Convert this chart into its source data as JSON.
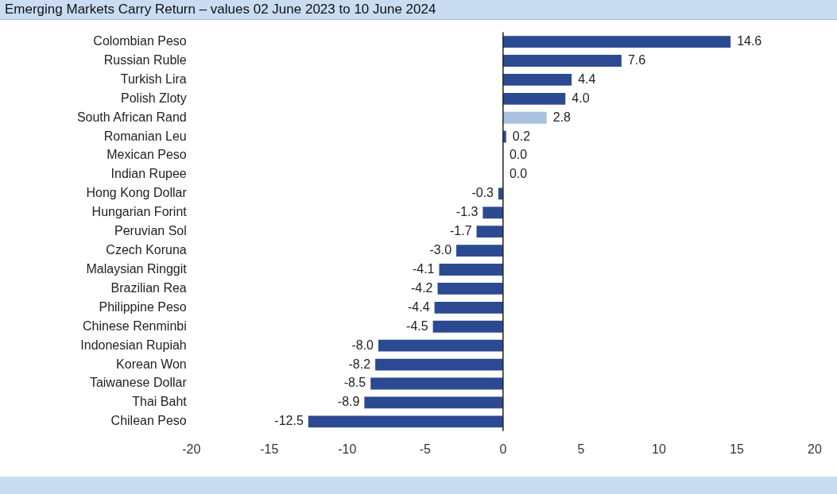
{
  "chart_data": {
    "type": "bar",
    "orientation": "horizontal",
    "title": "Emerging Markets Carry Return – values 02 June 2023 to 10 June 2024",
    "categories": [
      "Colombian Peso",
      "Russian Ruble",
      "Turkish Lira",
      "Polish Zloty",
      "South African Rand",
      "Romanian Leu",
      "Mexican Peso",
      "Indian Rupee",
      "Hong Kong Dollar",
      "Hungarian Forint",
      "Peruvian Sol",
      "Czech Koruna",
      "Malaysian Ringgit",
      "Brazilian Rea",
      "Philippine Peso",
      "Chinese Renminbi",
      "Indonesian Rupiah",
      "Korean Won",
      "Taiwanese Dollar",
      "Thai Baht",
      "Chilean Peso"
    ],
    "values": [
      14.6,
      7.6,
      4.4,
      4.0,
      2.8,
      0.2,
      0.0,
      0.0,
      -0.3,
      -1.3,
      -1.7,
      -3.0,
      -4.1,
      -4.2,
      -4.4,
      -4.5,
      -8.0,
      -8.2,
      -8.5,
      -8.9,
      -12.5
    ],
    "value_labels": [
      "14.6",
      "7.6",
      "4.4",
      "4.0",
      "2.8",
      "0.2",
      "0.0",
      "0.0",
      "-0.3",
      "-1.3",
      "-1.7",
      "-3.0",
      "-4.1",
      "-4.2",
      "-4.4",
      "-4.5",
      "-8.0",
      "-8.2",
      "-8.5",
      "-8.9",
      "-12.5"
    ],
    "colors": [
      "#2b4a91",
      "#2b4a91",
      "#2b4a91",
      "#2b4a91",
      "#a9c2e0",
      "#2b4a91",
      "#2b4a91",
      "#2b4a91",
      "#2b4a91",
      "#2b4a91",
      "#2b4a91",
      "#2b4a91",
      "#2b4a91",
      "#2b4a91",
      "#2b4a91",
      "#2b4a91",
      "#2b4a91",
      "#2b4a91",
      "#2b4a91",
      "#2b4a91",
      "#2b4a91"
    ],
    "xlim": [
      -20,
      20
    ],
    "xticks": [
      -20,
      -15,
      -10,
      -5,
      0,
      5,
      10,
      15,
      20
    ],
    "ref_lines": [
      {
        "axis": "x",
        "value": 0,
        "color": "#222222"
      }
    ],
    "grid": false,
    "legend": false
  }
}
